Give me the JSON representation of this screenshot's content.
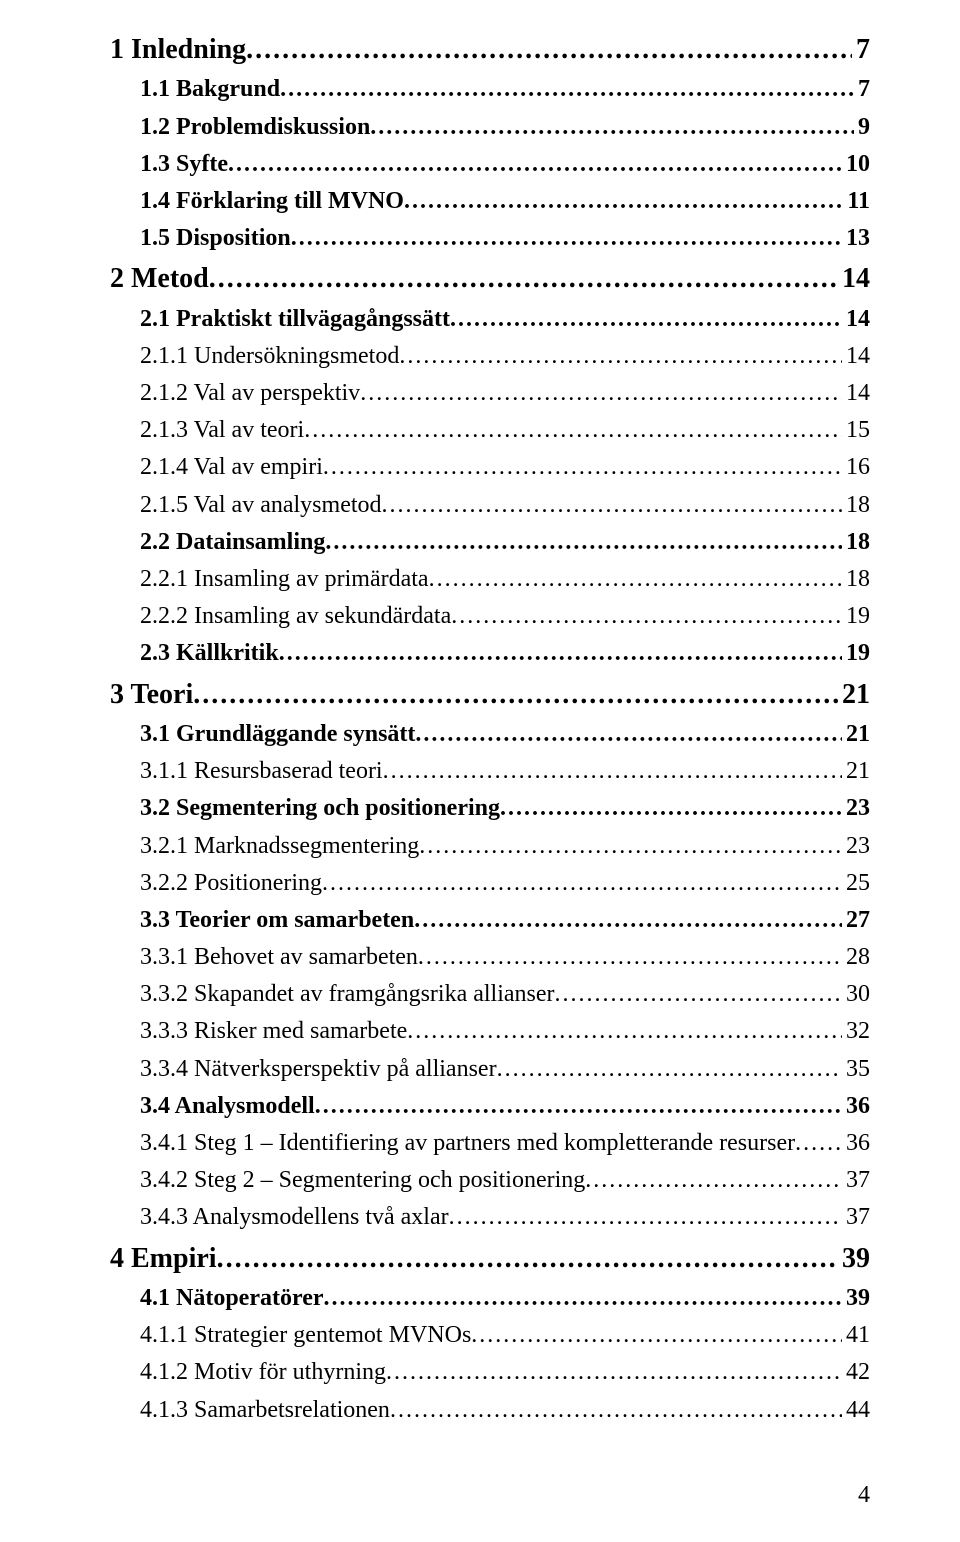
{
  "toc": [
    {
      "level": "h1",
      "label": "1 Inledning",
      "page": "7"
    },
    {
      "level": "h2",
      "label": "1.1 Bakgrund",
      "page": "7"
    },
    {
      "level": "h2",
      "label": "1.2 Problemdiskussion",
      "page": "9"
    },
    {
      "level": "h2",
      "label": "1.3 Syfte",
      "page": "10"
    },
    {
      "level": "h2",
      "label": "1.4 Förklaring till MVNO",
      "page": "11"
    },
    {
      "level": "h2",
      "label": "1.5 Disposition",
      "page": "13"
    },
    {
      "level": "h1",
      "label": "2 Metod",
      "page": "14"
    },
    {
      "level": "h2",
      "label": "2.1 Praktiskt tillvägagångssätt",
      "page": "14"
    },
    {
      "level": "h3",
      "label": "2.1.1 Undersökningsmetod",
      "page": "14"
    },
    {
      "level": "h3",
      "label": "2.1.2 Val av perspektiv",
      "page": "14"
    },
    {
      "level": "h3",
      "label": "2.1.3 Val av teori",
      "page": "15"
    },
    {
      "level": "h3",
      "label": "2.1.4 Val av empiri",
      "page": "16"
    },
    {
      "level": "h3",
      "label": "2.1.5 Val av analysmetod",
      "page": "18"
    },
    {
      "level": "h2",
      "label": "2.2 Datainsamling",
      "page": "18"
    },
    {
      "level": "h3",
      "label": "2.2.1 Insamling av primärdata",
      "page": "18"
    },
    {
      "level": "h3",
      "label": "2.2.2 Insamling av sekundärdata",
      "page": "19"
    },
    {
      "level": "h2",
      "label": "2.3 Källkritik",
      "page": "19"
    },
    {
      "level": "h1",
      "label": "3 Teori",
      "page": "21"
    },
    {
      "level": "h2",
      "label": "3.1 Grundläggande synsätt",
      "page": "21"
    },
    {
      "level": "h3",
      "label": "3.1.1 Resursbaserad teori",
      "page": "21"
    },
    {
      "level": "h2",
      "label": "3.2 Segmentering och positionering",
      "page": "23"
    },
    {
      "level": "h3",
      "label": "3.2.1 Marknadssegmentering",
      "page": "23"
    },
    {
      "level": "h3",
      "label": "3.2.2 Positionering",
      "page": "25"
    },
    {
      "level": "h2",
      "label": "3.3 Teorier om samarbeten",
      "page": "27"
    },
    {
      "level": "h3",
      "label": "3.3.1 Behovet av samarbeten",
      "page": "28"
    },
    {
      "level": "h3",
      "label": "3.3.2 Skapandet av framgångsrika allianser",
      "page": "30"
    },
    {
      "level": "h3",
      "label": "3.3.3 Risker med samarbete",
      "page": "32"
    },
    {
      "level": "h3",
      "label": "3.3.4 Nätverksperspektiv på allianser",
      "page": "35"
    },
    {
      "level": "h2",
      "label": "3.4 Analysmodell",
      "page": "36"
    },
    {
      "level": "h3",
      "label": "3.4.1 Steg 1 – Identifiering av partners med kompletterande resurser",
      "page": "36"
    },
    {
      "level": "h3",
      "label": "3.4.2 Steg 2 – Segmentering och positionering",
      "page": "37"
    },
    {
      "level": "h3",
      "label": "3.4.3 Analysmodellens två axlar",
      "page": "37"
    },
    {
      "level": "h1",
      "label": "4 Empiri",
      "page": "39"
    },
    {
      "level": "h2",
      "label": "4.1 Nätoperatörer",
      "page": "39"
    },
    {
      "level": "h3",
      "label": "4.1.1 Strategier gentemot MVNOs",
      "page": "41"
    },
    {
      "level": "h3",
      "label": "4.1.2 Motiv för uthyrning",
      "page": "42"
    },
    {
      "level": "h3",
      "label": "4.1.3 Samarbetsrelationen",
      "page": "44"
    }
  ],
  "footer_page_number": "4"
}
